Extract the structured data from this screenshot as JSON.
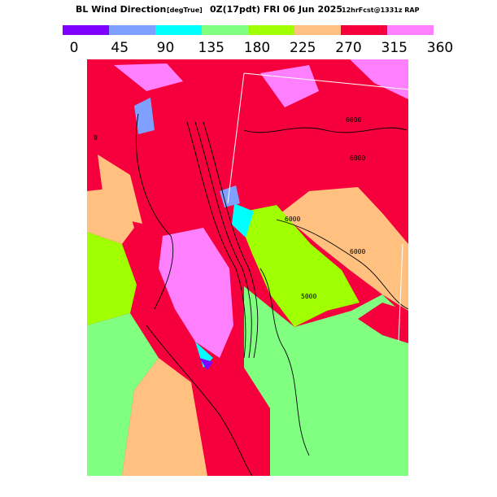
{
  "title": {
    "name": "BL Wind Direction",
    "units": "[degTrue]",
    "valid": "0Z(17pdt) FRI 06 Jun 2025",
    "forecast": "12hrFcst@1331z RAP"
  },
  "colorbar": {
    "bins": [
      0,
      45,
      90,
      135,
      180,
      225,
      270,
      315,
      360
    ],
    "colors": [
      "#8000ff",
      "#80a0ff",
      "#00ffff",
      "#80ff80",
      "#a0ff00",
      "#ffc080",
      "#f5003c",
      "#ff80ff"
    ]
  },
  "map": {
    "contour_labels": [
      "6000",
      "6000",
      "6000",
      "6000",
      "5000",
      "0"
    ]
  }
}
